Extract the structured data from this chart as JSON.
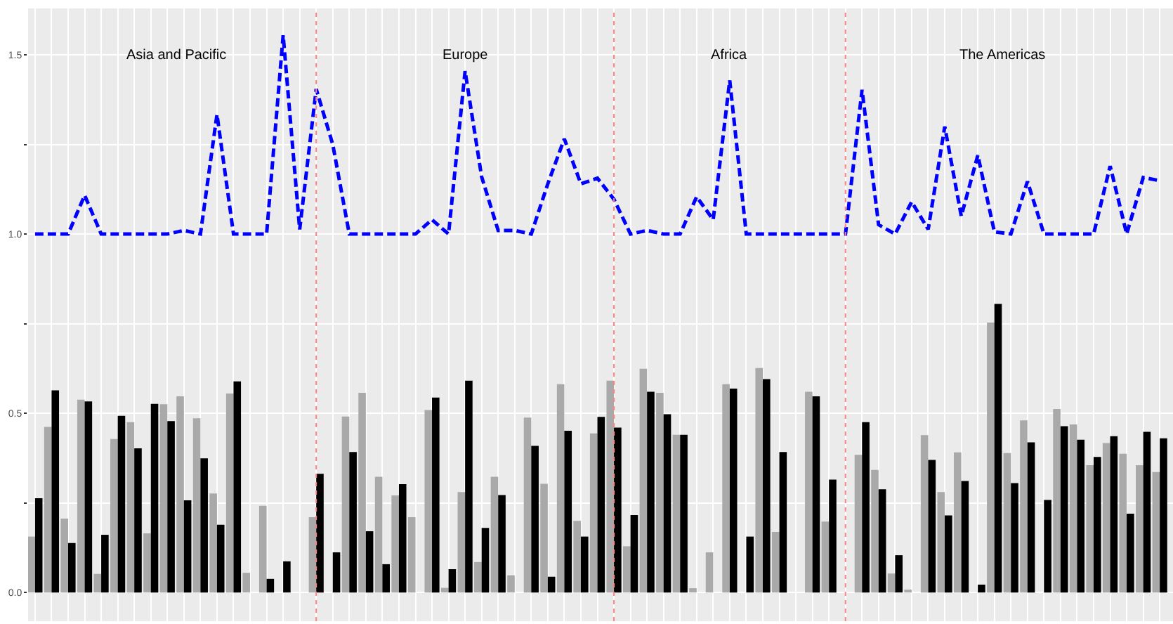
{
  "chart_data": [
    {
      "type": "line",
      "categories": [
        null,
        null,
        null,
        null,
        null,
        null,
        null,
        null,
        null,
        null,
        null,
        null,
        null,
        null,
        null,
        null,
        null,
        null,
        null,
        null,
        null,
        null,
        null,
        null,
        null,
        null,
        null,
        null,
        null,
        null,
        null,
        null,
        null,
        null,
        null,
        null,
        null,
        null,
        null,
        null,
        null,
        null,
        null,
        null,
        null,
        null,
        null,
        null,
        null,
        null,
        null,
        null,
        null,
        null,
        null,
        null,
        null,
        null,
        null,
        null,
        null,
        null,
        null,
        null,
        null,
        null,
        null,
        null,
        null
      ],
      "ylim": [
        0.9,
        1.63
      ],
      "yticks": [
        {
          "value": 1,
          "label": "1.0"
        },
        {
          "value": 1.25,
          "label": null
        },
        {
          "value": 1.5,
          "label": "1.5"
        }
      ],
      "tick_labels": "y",
      "grid": true,
      "line_style": "dashed",
      "marker": "none",
      "series": [
        {
          "color": "#0000ff",
          "values": [
            1,
            1,
            1,
            1.108,
            1,
            1,
            1,
            1,
            1,
            1.01,
            1,
            1.334,
            1,
            1,
            1,
            1.555,
            1.013,
            1.405,
            1.25,
            1,
            1,
            1,
            1,
            1,
            1.04,
            1,
            1.455,
            1.16,
            1.01,
            1.01,
            1,
            1.14,
            1.266,
            1.14,
            1.156,
            1.097,
            1,
            1.01,
            1,
            1,
            1.104,
            1.04,
            1.429,
            1,
            1,
            1,
            1,
            1,
            1,
            1,
            1.403,
            1.026,
            1,
            1.09,
            1.013,
            1.3,
            1.05,
            1.22,
            1.006,
            1,
            1.147,
            1,
            1,
            1,
            1,
            1.19,
            1,
            1.158,
            1.149
          ]
        }
      ],
      "annotations": [
        "Asia and Pacific",
        "Europe",
        "Africa",
        "The Americas"
      ]
    },
    {
      "type": "bar",
      "categories": [
        null,
        null,
        null,
        null,
        null,
        null,
        null,
        null,
        null,
        null,
        null,
        null,
        null,
        null,
        null,
        null,
        null,
        null,
        null,
        null,
        null,
        null,
        null,
        null,
        null,
        null,
        null,
        null,
        null,
        null,
        null,
        null,
        null,
        null,
        null,
        null,
        null,
        null,
        null,
        null,
        null,
        null,
        null,
        null,
        null,
        null,
        null,
        null,
        null,
        null,
        null,
        null,
        null,
        null,
        null,
        null,
        null,
        null,
        null,
        null,
        null,
        null,
        null,
        null,
        null,
        null,
        null,
        null,
        null
      ],
      "ylim": [
        -0.08,
        0.9
      ],
      "yticks": [
        {
          "value": 0,
          "label": "0.0"
        },
        {
          "value": 0.25,
          "label": null
        },
        {
          "value": 0.5,
          "label": "0.5"
        },
        {
          "value": 0.75,
          "label": null
        }
      ],
      "tick_labels": "y",
      "grid": true,
      "series": [
        {
          "color": "#a9a9a9",
          "values": [
            0.156,
            0.462,
            0.206,
            0.538,
            0.052,
            0.428,
            0.475,
            0.165,
            0.525,
            0.547,
            0.486,
            0.276,
            0.555,
            0.055,
            0.242,
            0,
            0,
            0.21,
            0,
            0.491,
            0.557,
            0.323,
            0.271,
            0.21,
            0.509,
            0.013,
            0.28,
            0.085,
            0.323,
            0.048,
            0.488,
            0.303,
            0.581,
            0.2,
            0.444,
            0.591,
            0.129,
            0.624,
            0.557,
            0.44,
            0.012,
            0.112,
            0.581,
            0,
            0.626,
            0.169,
            0,
            0.56,
            0.198,
            0,
            0.384,
            0.342,
            0.053,
            0.008,
            0.439,
            0.28,
            0.391,
            0,
            0.753,
            0.389,
            0.48,
            0,
            0.512,
            0.469,
            0.355,
            0.417,
            0.387,
            0.355,
            0.336
          ]
        },
        {
          "color": "#000000",
          "values": [
            0.263,
            0.564,
            0.138,
            0.533,
            0.161,
            0.493,
            0.402,
            0.526,
            0.478,
            0.257,
            0.374,
            0.189,
            0.589,
            0,
            0.038,
            0.087,
            0,
            0.331,
            0.112,
            0.392,
            0.171,
            0.079,
            0.302,
            0,
            0.544,
            0.065,
            0.591,
            0.18,
            0.272,
            0,
            0.409,
            0.044,
            0.451,
            0.156,
            0.49,
            0.46,
            0.216,
            0.56,
            0.497,
            0.44,
            0,
            0,
            0.569,
            0.156,
            0.595,
            0.392,
            0,
            0.547,
            0.315,
            0,
            0.475,
            0.288,
            0.104,
            0,
            0.37,
            0.215,
            0.311,
            0.022,
            0.805,
            0.305,
            0.419,
            0.258,
            0.464,
            0.426,
            0.378,
            0.436,
            0.22,
            0.448,
            0.43
          ]
        }
      ]
    }
  ]
}
